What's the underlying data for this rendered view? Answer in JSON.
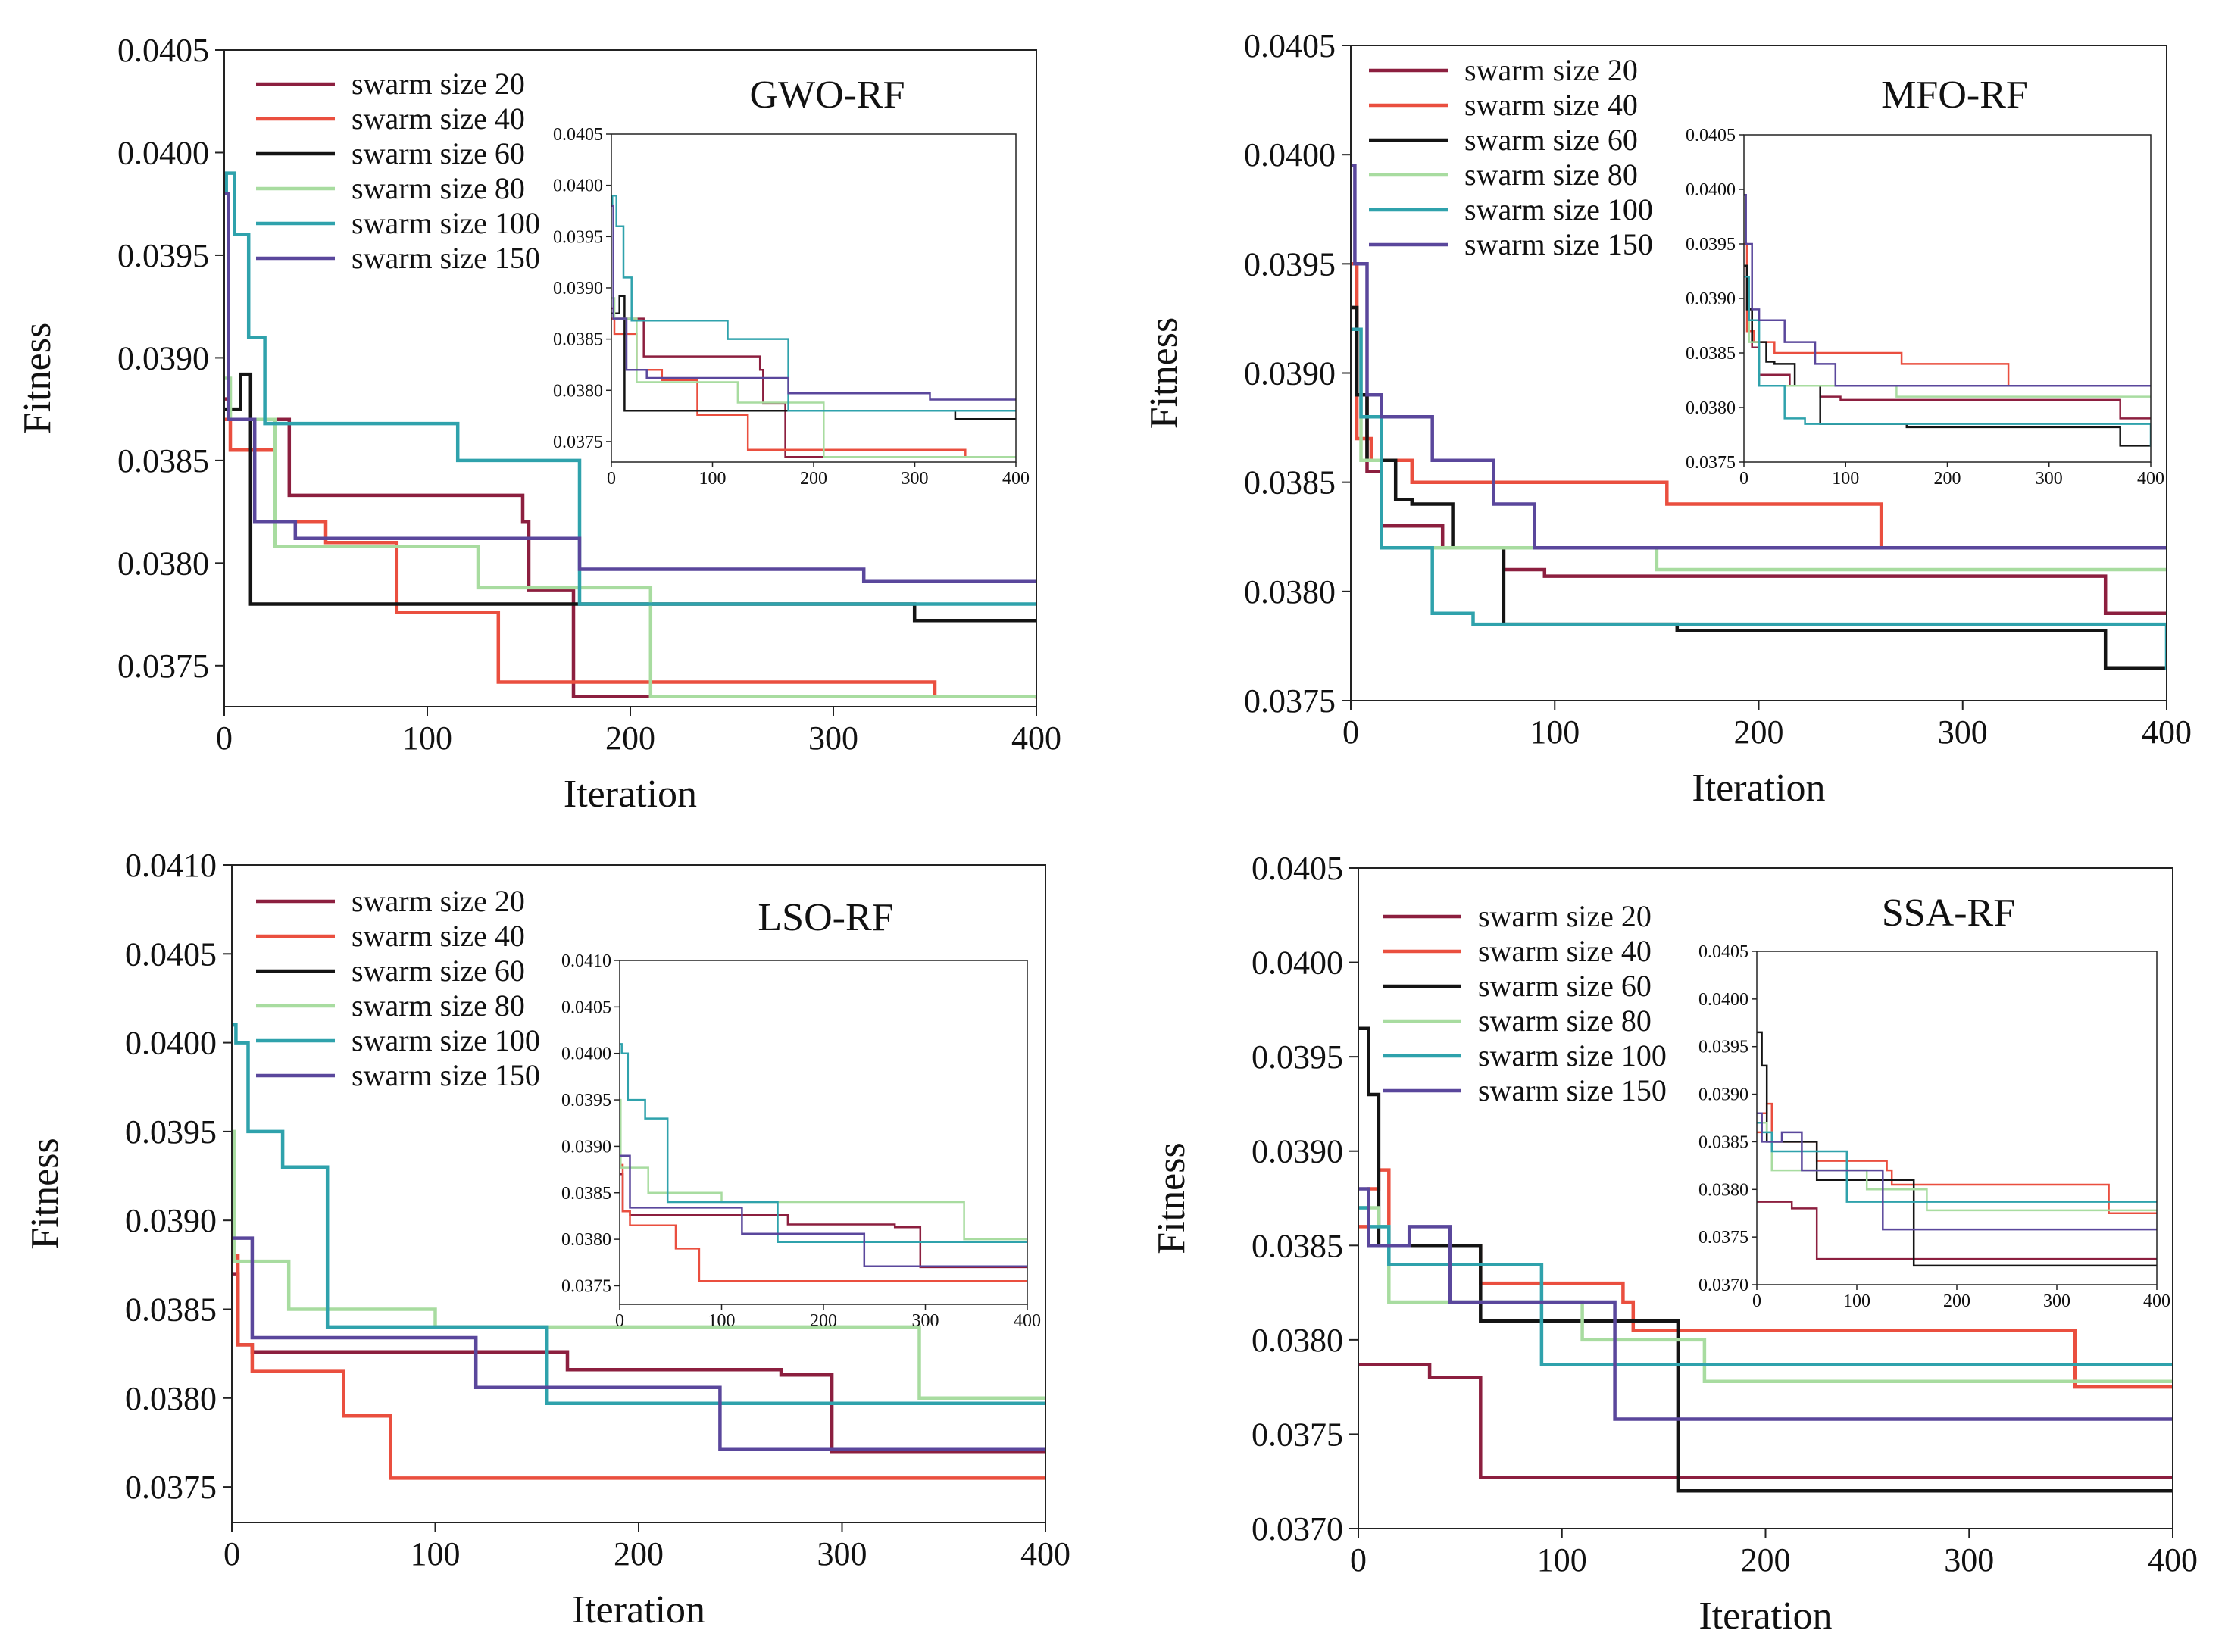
{
  "colors": {
    "swarm size 20": "#8c1f3f",
    "swarm size 40": "#ea4f3f",
    "swarm size 60": "#141414",
    "swarm size 80": "#a8dca0",
    "swarm size 100": "#2fa2ac",
    "swarm size 150": "#5a479c"
  },
  "chart_data": [
    {
      "type": "line",
      "title": "GWO-RF",
      "xlabel": "Iteration",
      "ylabel": "Fitness",
      "xlim": [
        0,
        400
      ],
      "ylim": [
        0.0373,
        0.0405
      ],
      "xticks": [
        0,
        100,
        200,
        300,
        400
      ],
      "yticks": [
        0.0375,
        0.038,
        0.0385,
        0.039,
        0.0395,
        0.04,
        0.0405
      ],
      "ytick_labels": [
        "0.0375",
        "0.0380",
        "0.0385",
        "0.0390",
        "0.0395",
        "0.0400",
        "0.0405"
      ],
      "inset_ytick_labels": [
        "0.0375",
        "0.0380",
        "0.0385",
        "0.0390",
        "0.0395",
        "0.0400",
        "0.0405"
      ],
      "legend": [
        "swarm size 20",
        "swarm size 40",
        "swarm size 60",
        "swarm size 80",
        "swarm size 100",
        "swarm size 150"
      ],
      "series": [
        {
          "name": "swarm size 20",
          "x": [
            0,
            2,
            30,
            32,
            135,
            147,
            150,
            170,
            172,
            400
          ],
          "y": [
            0.0388,
            0.0387,
            0.0387,
            0.03833,
            0.03833,
            0.0382,
            0.03787,
            0.03787,
            0.03735,
            0.03735
          ]
        },
        {
          "name": "swarm size 40",
          "x": [
            0,
            3,
            25,
            50,
            85,
            135,
            350,
            400
          ],
          "y": [
            0.0387,
            0.03855,
            0.0382,
            0.0381,
            0.03776,
            0.03742,
            0.03735,
            0.03734
          ]
        },
        {
          "name": "swarm size 60",
          "x": [
            0,
            8,
            13,
            340,
            400
          ],
          "y": [
            0.03875,
            0.03892,
            0.0378,
            0.03772,
            0.03772
          ]
        },
        {
          "name": "swarm size 80",
          "x": [
            0,
            3,
            25,
            125,
            210,
            400
          ],
          "y": [
            0.0389,
            0.0387,
            0.03808,
            0.03788,
            0.03735,
            0.03735
          ]
        },
        {
          "name": "swarm size 100",
          "x": [
            0,
            1,
            5,
            12,
            20,
            115,
            175,
            400
          ],
          "y": [
            0.0398,
            0.0399,
            0.0396,
            0.0391,
            0.03868,
            0.0385,
            0.0378,
            0.0378
          ]
        },
        {
          "name": "swarm size 150",
          "x": [
            0,
            2,
            15,
            35,
            175,
            315,
            400
          ],
          "y": [
            0.0398,
            0.0387,
            0.0382,
            0.03812,
            0.03797,
            0.03791,
            0.03791
          ]
        }
      ]
    },
    {
      "type": "line",
      "title": "MFO-RF",
      "xlabel": "Iteration",
      "ylabel": "Fitness",
      "xlim": [
        0,
        400
      ],
      "ylim": [
        0.0375,
        0.0405
      ],
      "xticks": [
        0,
        100,
        200,
        300,
        400
      ],
      "yticks": [
        0.0375,
        0.038,
        0.0385,
        0.039,
        0.0395,
        0.04,
        0.0405
      ],
      "ytick_labels": [
        "0.0375",
        "0.0380",
        "0.0385",
        "0.0390",
        "0.0395",
        "0.0400",
        "0.0405"
      ],
      "inset_ytick_labels": [
        "0.0375",
        "0.0380",
        "0.0385",
        "0.0390",
        "0.0395",
        "0.0400",
        "0.0405"
      ],
      "legend": [
        "swarm size 20",
        "swarm size 40",
        "swarm size 60",
        "swarm size 80",
        "swarm size 100",
        "swarm size 150"
      ],
      "series": [
        {
          "name": "swarm size 20",
          "x": [
            0,
            3,
            8,
            15,
            45,
            75,
            95,
            300,
            370,
            400
          ],
          "y": [
            0.0393,
            0.0389,
            0.03855,
            0.0383,
            0.0382,
            0.0381,
            0.03807,
            0.03807,
            0.0379,
            0.0379
          ]
        },
        {
          "name": "swarm size 40",
          "x": [
            0,
            3,
            10,
            30,
            50,
            155,
            260,
            400
          ],
          "y": [
            0.0395,
            0.0387,
            0.0386,
            0.0385,
            0.0385,
            0.0384,
            0.0382,
            0.0382
          ]
        },
        {
          "name": "swarm size 60",
          "x": [
            0,
            3,
            8,
            22,
            30,
            50,
            75,
            160,
            370,
            400
          ],
          "y": [
            0.0393,
            0.0389,
            0.0386,
            0.03842,
            0.0384,
            0.0382,
            0.03785,
            0.03782,
            0.03765,
            0.03765
          ]
        },
        {
          "name": "swarm size 80",
          "x": [
            0,
            5,
            15,
            90,
            150,
            300,
            400
          ],
          "y": [
            0.0392,
            0.0386,
            0.0382,
            0.0382,
            0.0381,
            0.0381,
            0.0381
          ]
        },
        {
          "name": "swarm size 100",
          "x": [
            0,
            5,
            15,
            40,
            60,
            270,
            400
          ],
          "y": [
            0.0392,
            0.0388,
            0.0382,
            0.0379,
            0.03785,
            0.03785,
            0.03764
          ]
        },
        {
          "name": "swarm size 150",
          "x": [
            0,
            2,
            8,
            15,
            40,
            70,
            90,
            400
          ],
          "y": [
            0.03995,
            0.0395,
            0.0389,
            0.0388,
            0.0386,
            0.0384,
            0.0382,
            0.0382
          ]
        }
      ]
    },
    {
      "type": "line",
      "title": "LSO-RF",
      "xlabel": "Iteration",
      "ylabel": "Fitness",
      "xlim": [
        0,
        400
      ],
      "ylim": [
        0.0373,
        0.041
      ],
      "xticks": [
        0,
        100,
        200,
        300,
        400
      ],
      "yticks": [
        0.0375,
        0.038,
        0.0385,
        0.039,
        0.0395,
        0.04,
        0.0405,
        0.041
      ],
      "ytick_labels": [
        "0.0375",
        "0.0380",
        "0.0385",
        "0.0390",
        "0.0395",
        "0.0400",
        "0.0405",
        "0.0410"
      ],
      "inset_ytick_labels": [
        "0.0375",
        "0.0380",
        "0.0385",
        "0.0390",
        "0.0395",
        "0.0400",
        "0.0405",
        "0.0410"
      ],
      "legend": [
        "swarm size 20",
        "swarm size 40",
        "swarm size 60",
        "swarm size 80",
        "swarm size 100",
        "swarm size 150"
      ],
      "series": [
        {
          "name": "swarm size 20",
          "x": [
            0,
            3,
            10,
            165,
            270,
            295,
            370,
            400
          ],
          "y": [
            0.0387,
            0.0383,
            0.03826,
            0.03816,
            0.03813,
            0.0377,
            0.0377,
            0.0377
          ]
        },
        {
          "name": "swarm size 40",
          "x": [
            0,
            3,
            10,
            55,
            78,
            400
          ],
          "y": [
            0.0388,
            0.0383,
            0.03815,
            0.0379,
            0.03755,
            0.03755
          ]
        },
        {
          "name": "swarm size 80",
          "x": [
            0,
            1,
            28,
            100,
            338,
            400
          ],
          "y": [
            0.0395,
            0.03877,
            0.0385,
            0.0384,
            0.038,
            0.038
          ]
        },
        {
          "name": "swarm size 100",
          "x": [
            0,
            2,
            8,
            25,
            47,
            150,
            155,
            400
          ],
          "y": [
            0.0401,
            0.04,
            0.0395,
            0.0393,
            0.0384,
            0.0384,
            0.03797,
            0.03797
          ]
        },
        {
          "name": "swarm size 150",
          "x": [
            0,
            10,
            120,
            240,
            400
          ],
          "y": [
            0.0389,
            0.03834,
            0.03806,
            0.03771,
            0.03771
          ]
        }
      ]
    },
    {
      "type": "line",
      "title": "SSA-RF",
      "xlabel": "Iteration",
      "ylabel": "Fitness",
      "xlim": [
        0,
        400
      ],
      "ylim": [
        0.037,
        0.0405
      ],
      "xticks": [
        0,
        100,
        200,
        300,
        400
      ],
      "yticks": [
        0.037,
        0.0375,
        0.038,
        0.0385,
        0.039,
        0.0395,
        0.04,
        0.0405
      ],
      "ytick_labels": [
        "0.0370",
        "0.0375",
        "0.0380",
        "0.0385",
        "0.0390",
        "0.0395",
        "0.0400",
        "0.0405"
      ],
      "inset_ytick_labels": [
        "0.0370",
        "0.0375",
        "0.0380",
        "0.0385",
        "0.0390",
        "0.0395",
        "0.0400",
        "0.0405"
      ],
      "legend": [
        "swarm size 20",
        "swarm size 40",
        "swarm size 60",
        "swarm size 80",
        "swarm size 100",
        "swarm size 150"
      ],
      "series": [
        {
          "name": "swarm size 20",
          "x": [
            0,
            35,
            40,
            60,
            400
          ],
          "y": [
            0.03787,
            0.0378,
            0.0378,
            0.03727,
            0.03727
          ]
        },
        {
          "name": "swarm size 40",
          "x": [
            0,
            5,
            10,
            15,
            60,
            130,
            135,
            352,
            400
          ],
          "y": [
            0.0386,
            0.0388,
            0.0389,
            0.0385,
            0.0383,
            0.0382,
            0.03805,
            0.03775,
            0.03775
          ]
        },
        {
          "name": "swarm size 60",
          "x": [
            0,
            5,
            10,
            60,
            90,
            157,
            400
          ],
          "y": [
            0.03965,
            0.0393,
            0.0385,
            0.0381,
            0.0381,
            0.0372,
            0.0372
          ]
        },
        {
          "name": "swarm size 80",
          "x": [
            0,
            10,
            15,
            50,
            110,
            170,
            400
          ],
          "y": [
            0.0387,
            0.0386,
            0.0382,
            0.0382,
            0.038,
            0.03778,
            0.03778
          ]
        },
        {
          "name": "swarm size 100",
          "x": [
            0,
            5,
            15,
            90,
            400
          ],
          "y": [
            0.0387,
            0.0386,
            0.0384,
            0.03787,
            0.03787
          ]
        },
        {
          "name": "swarm size 150",
          "x": [
            0,
            5,
            25,
            45,
            120,
            126,
            400
          ],
          "y": [
            0.0388,
            0.0385,
            0.0386,
            0.0382,
            0.0382,
            0.03758,
            0.03758
          ]
        }
      ]
    }
  ]
}
